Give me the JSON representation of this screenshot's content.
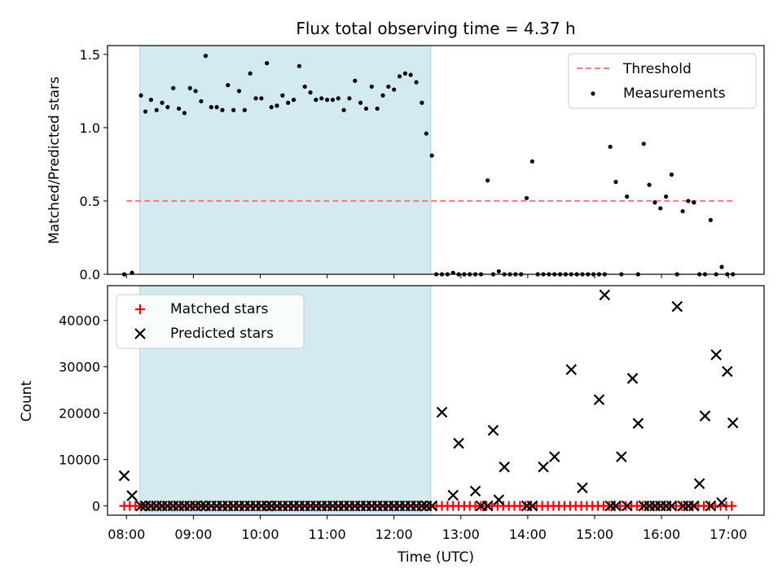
{
  "chart_data": [
    {
      "type": "scatter",
      "title": "Flux total observing time = 4.37 h",
      "xlabel": "",
      "ylabel": "Matched/Predicted stars",
      "xlim": [
        "07:43",
        "17:32"
      ],
      "ylim": [
        0,
        1.56
      ],
      "yticks": [
        "0.0",
        "0.5",
        "1.0",
        "1.5"
      ],
      "highlight_span": [
        "08:12",
        "12:33"
      ],
      "highlight_color": "#d3eaf0",
      "legend_position": "upper right",
      "threshold": {
        "name": "Threshold",
        "y": 0.5,
        "x": [
          "08:00",
          "17:05"
        ],
        "color": "#f47a7a"
      },
      "series": [
        {
          "name": "Measurements",
          "color": "#000000",
          "points": [
            [
              "07:58",
              0.0
            ],
            [
              "08:05",
              0.01
            ],
            [
              "08:13",
              1.22
            ],
            [
              "08:17",
              1.11
            ],
            [
              "08:22",
              1.19
            ],
            [
              "08:27",
              1.12
            ],
            [
              "08:32",
              1.17
            ],
            [
              "08:37",
              1.14
            ],
            [
              "08:42",
              1.27
            ],
            [
              "08:47",
              1.13
            ],
            [
              "08:52",
              1.1
            ],
            [
              "08:57",
              1.27
            ],
            [
              "09:02",
              1.25
            ],
            [
              "09:07",
              1.18
            ],
            [
              "09:11",
              1.49
            ],
            [
              "09:16",
              1.14
            ],
            [
              "09:21",
              1.14
            ],
            [
              "09:26",
              1.12
            ],
            [
              "09:31",
              1.29
            ],
            [
              "09:36",
              1.12
            ],
            [
              "09:41",
              1.25
            ],
            [
              "09:46",
              1.12
            ],
            [
              "09:51",
              1.37
            ],
            [
              "09:56",
              1.2
            ],
            [
              "10:01",
              1.2
            ],
            [
              "10:06",
              1.44
            ],
            [
              "10:10",
              1.14
            ],
            [
              "10:15",
              1.15
            ],
            [
              "10:20",
              1.22
            ],
            [
              "10:25",
              1.17
            ],
            [
              "10:30",
              1.19
            ],
            [
              "10:35",
              1.42
            ],
            [
              "10:40",
              1.28
            ],
            [
              "10:45",
              1.24
            ],
            [
              "10:50",
              1.19
            ],
            [
              "10:55",
              1.2
            ],
            [
              "11:00",
              1.19
            ],
            [
              "11:05",
              1.19
            ],
            [
              "11:10",
              1.2
            ],
            [
              "11:15",
              1.12
            ],
            [
              "11:20",
              1.2
            ],
            [
              "11:25",
              1.32
            ],
            [
              "11:30",
              1.17
            ],
            [
              "11:35",
              1.13
            ],
            [
              "11:40",
              1.28
            ],
            [
              "11:45",
              1.13
            ],
            [
              "11:50",
              1.22
            ],
            [
              "11:55",
              1.28
            ],
            [
              "12:00",
              1.26
            ],
            [
              "12:05",
              1.35
            ],
            [
              "12:10",
              1.37
            ],
            [
              "12:15",
              1.36
            ],
            [
              "12:20",
              1.31
            ],
            [
              "12:25",
              1.17
            ],
            [
              "12:29",
              0.96
            ],
            [
              "12:34",
              0.81
            ],
            [
              "12:38",
              0.0
            ],
            [
              "12:43",
              0.0
            ],
            [
              "12:48",
              0.0
            ],
            [
              "12:53",
              0.01
            ],
            [
              "12:58",
              0.0
            ],
            [
              "13:03",
              0.0
            ],
            [
              "13:08",
              0.0
            ],
            [
              "13:13",
              0.0
            ],
            [
              "13:18",
              0.0
            ],
            [
              "13:24",
              0.64
            ],
            [
              "13:29",
              0.0
            ],
            [
              "13:34",
              0.02
            ],
            [
              "13:39",
              0.0
            ],
            [
              "13:44",
              0.0
            ],
            [
              "13:49",
              0.0
            ],
            [
              "13:54",
              0.0
            ],
            [
              "13:59",
              0.52
            ],
            [
              "14:04",
              0.77
            ],
            [
              "14:09",
              0.0
            ],
            [
              "14:14",
              0.0
            ],
            [
              "14:19",
              0.0
            ],
            [
              "14:24",
              0.0
            ],
            [
              "14:29",
              0.0
            ],
            [
              "14:34",
              0.0
            ],
            [
              "14:39",
              0.0
            ],
            [
              "14:44",
              0.0
            ],
            [
              "14:49",
              0.0
            ],
            [
              "14:54",
              0.0
            ],
            [
              "14:59",
              0.0
            ],
            [
              "15:04",
              0.0
            ],
            [
              "15:09",
              0.0
            ],
            [
              "15:14",
              0.87
            ],
            [
              "15:19",
              0.63
            ],
            [
              "15:24",
              0.0
            ],
            [
              "15:29",
              0.53
            ],
            [
              "15:39",
              0.0
            ],
            [
              "15:44",
              0.89
            ],
            [
              "15:49",
              0.61
            ],
            [
              "15:54",
              0.49
            ],
            [
              "15:59",
              0.45
            ],
            [
              "16:04",
              0.53
            ],
            [
              "16:09",
              0.68
            ],
            [
              "16:14",
              0.0
            ],
            [
              "16:19",
              0.43
            ],
            [
              "16:24",
              0.5
            ],
            [
              "16:29",
              0.49
            ],
            [
              "16:34",
              0.0
            ],
            [
              "16:39",
              0.0
            ],
            [
              "16:44",
              0.37
            ],
            [
              "16:49",
              0.0
            ],
            [
              "16:54",
              0.05
            ],
            [
              "16:59",
              0.0
            ],
            [
              "17:04",
              0.0
            ]
          ]
        }
      ]
    },
    {
      "type": "scatter",
      "title": "",
      "xlabel": "Time (UTC)",
      "ylabel": "Count",
      "xlim": [
        "07:43",
        "17:32"
      ],
      "ylim": [
        -2000,
        47500
      ],
      "xticks": [
        "08:00",
        "09:00",
        "10:00",
        "11:00",
        "12:00",
        "13:00",
        "14:00",
        "15:00",
        "16:00",
        "17:00"
      ],
      "yticks": [
        "0",
        "10000",
        "20000",
        "30000",
        "40000"
      ],
      "highlight_span": [
        "08:12",
        "12:33"
      ],
      "highlight_color": "#d3eaf0",
      "legend_position": "upper left",
      "series": [
        {
          "name": "Matched stars",
          "marker": "plus",
          "color": "#ff0000",
          "x_range": [
            "07:58",
            "17:04"
          ],
          "x_step_minutes": 5,
          "y": 0
        },
        {
          "name": "Predicted stars",
          "marker": "x",
          "color": "#000000",
          "points": [
            [
              "07:58",
              6500
            ],
            [
              "08:05",
              2200
            ],
            [
              "08:13",
              0
            ],
            [
              "08:17",
              0
            ],
            [
              "08:22",
              0
            ],
            [
              "08:27",
              0
            ],
            [
              "08:32",
              0
            ],
            [
              "08:37",
              0
            ],
            [
              "08:42",
              0
            ],
            [
              "08:47",
              0
            ],
            [
              "08:52",
              0
            ],
            [
              "08:57",
              0
            ],
            [
              "09:02",
              0
            ],
            [
              "09:07",
              0
            ],
            [
              "09:11",
              0
            ],
            [
              "09:16",
              0
            ],
            [
              "09:21",
              0
            ],
            [
              "09:26",
              0
            ],
            [
              "09:31",
              0
            ],
            [
              "09:36",
              0
            ],
            [
              "09:41",
              0
            ],
            [
              "09:46",
              0
            ],
            [
              "09:51",
              0
            ],
            [
              "09:56",
              0
            ],
            [
              "10:01",
              0
            ],
            [
              "10:06",
              0
            ],
            [
              "10:10",
              0
            ],
            [
              "10:15",
              0
            ],
            [
              "10:20",
              0
            ],
            [
              "10:25",
              0
            ],
            [
              "10:30",
              0
            ],
            [
              "10:35",
              0
            ],
            [
              "10:40",
              0
            ],
            [
              "10:45",
              0
            ],
            [
              "10:50",
              0
            ],
            [
              "10:55",
              0
            ],
            [
              "11:00",
              0
            ],
            [
              "11:05",
              0
            ],
            [
              "11:10",
              0
            ],
            [
              "11:15",
              0
            ],
            [
              "11:20",
              0
            ],
            [
              "11:25",
              0
            ],
            [
              "11:30",
              0
            ],
            [
              "11:35",
              0
            ],
            [
              "11:40",
              0
            ],
            [
              "11:45",
              0
            ],
            [
              "11:50",
              0
            ],
            [
              "11:55",
              0
            ],
            [
              "12:00",
              0
            ],
            [
              "12:05",
              0
            ],
            [
              "12:10",
              0
            ],
            [
              "12:15",
              0
            ],
            [
              "12:20",
              0
            ],
            [
              "12:25",
              0
            ],
            [
              "12:29",
              0
            ],
            [
              "12:34",
              0
            ],
            [
              "12:43",
              20200
            ],
            [
              "12:53",
              2300
            ],
            [
              "12:58",
              13500
            ],
            [
              "13:13",
              3200
            ],
            [
              "13:18",
              0
            ],
            [
              "13:24",
              0
            ],
            [
              "13:29",
              16300
            ],
            [
              "13:34",
              1300
            ],
            [
              "13:39",
              8400
            ],
            [
              "13:59",
              0
            ],
            [
              "14:04",
              0
            ],
            [
              "14:14",
              8400
            ],
            [
              "14:24",
              10600
            ],
            [
              "14:39",
              29400
            ],
            [
              "14:49",
              3900
            ],
            [
              "15:04",
              22900
            ],
            [
              "15:09",
              45500
            ],
            [
              "15:14",
              0
            ],
            [
              "15:19",
              0
            ],
            [
              "15:24",
              10600
            ],
            [
              "15:29",
              0
            ],
            [
              "15:34",
              27500
            ],
            [
              "15:39",
              17800
            ],
            [
              "15:44",
              0
            ],
            [
              "15:49",
              0
            ],
            [
              "15:54",
              0
            ],
            [
              "15:59",
              0
            ],
            [
              "16:04",
              0
            ],
            [
              "16:09",
              0
            ],
            [
              "16:14",
              43000
            ],
            [
              "16:19",
              0
            ],
            [
              "16:24",
              0
            ],
            [
              "16:29",
              0
            ],
            [
              "16:34",
              4800
            ],
            [
              "16:39",
              19400
            ],
            [
              "16:44",
              0
            ],
            [
              "16:49",
              32600
            ],
            [
              "16:54",
              700
            ],
            [
              "16:59",
              29000
            ],
            [
              "17:04",
              17900
            ]
          ]
        }
      ]
    }
  ]
}
